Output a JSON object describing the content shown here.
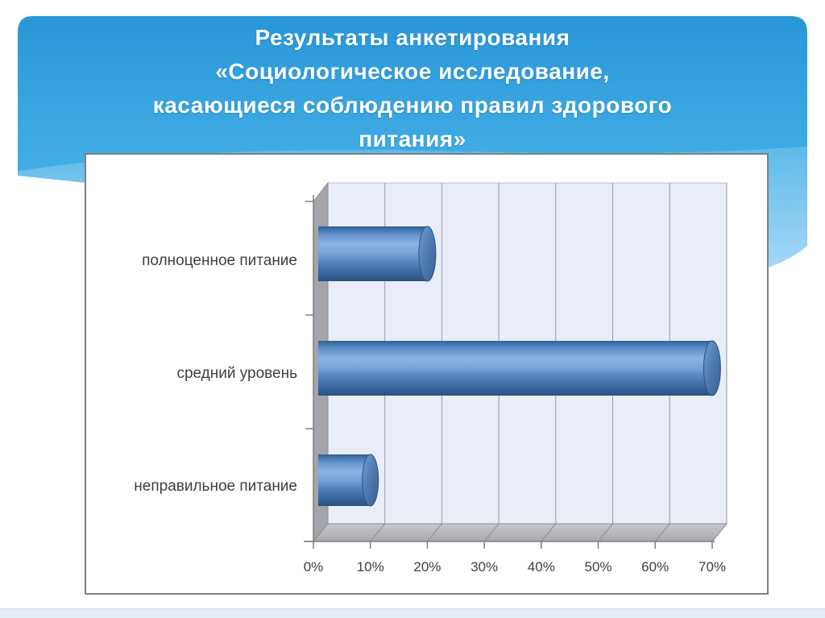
{
  "slide": {
    "title": {
      "lines": [
        "Результаты анкетирования",
        "«Социологическое исследование,",
        "касающиеся соблюдению правил здорового",
        "питания»"
      ]
    },
    "colors": {
      "banner_top": "#2897d7",
      "banner_bottom": "#44afe7",
      "wave_light_top": "#5fb9e9",
      "wave_light_bottom": "#a6daf6",
      "bottom_band": "#e3edf6",
      "plot_background": "#e9edf8",
      "wall_gray": "#a4a4aa",
      "floor_gray": "#b5b5bb",
      "bar_blue": "#4f81bd",
      "label_gray": "#3f3f3f"
    }
  },
  "chart_data": {
    "type": "bar",
    "orientation": "horizontal",
    "style": "3d-cylinder",
    "title": "",
    "xlabel": "",
    "ylabel": "",
    "categories": [
      "полноценное питание",
      "средний уровень",
      "неправильное питание"
    ],
    "values": [
      20,
      70,
      10
    ],
    "unit": "%",
    "xlim": [
      0,
      70
    ],
    "x_tick_step": 10,
    "x_tick_labels": [
      "0%",
      "10%",
      "20%",
      "30%",
      "40%",
      "50%",
      "60%",
      "70%"
    ],
    "grid": true,
    "legend": false
  }
}
